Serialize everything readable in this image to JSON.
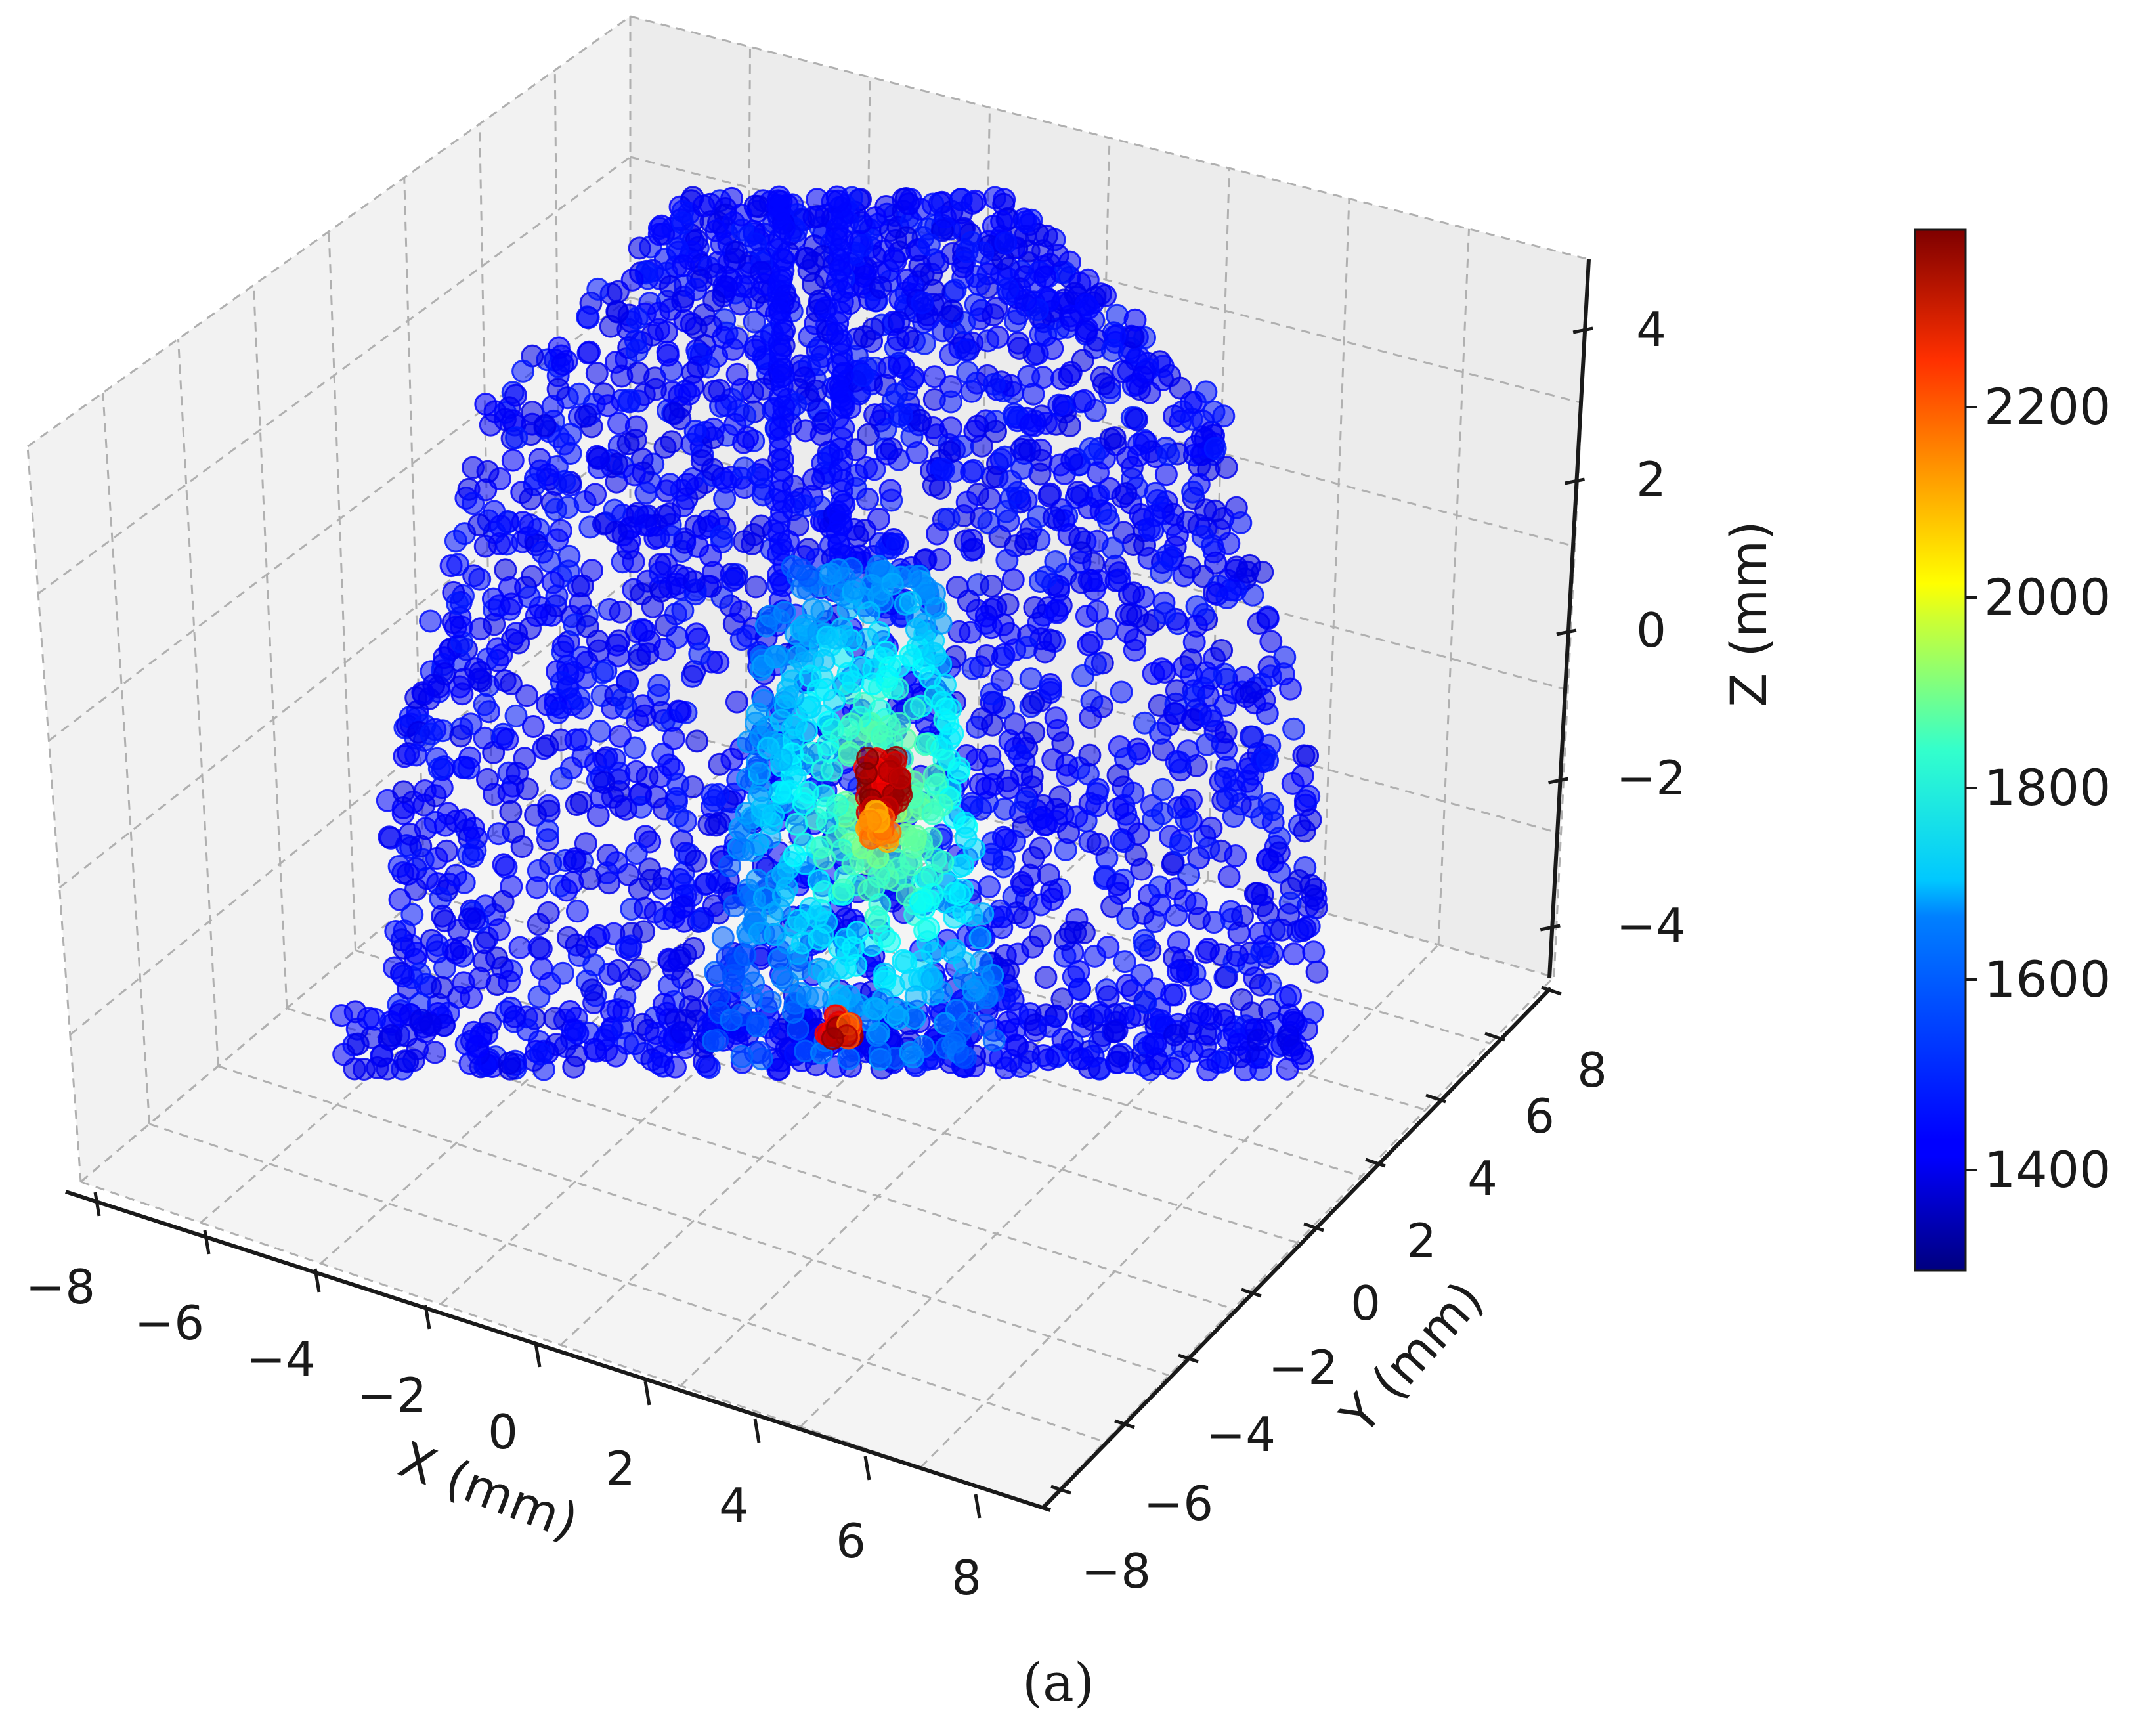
{
  "chart_data": {
    "type": "scatter3d",
    "xlabel": "X (mm)",
    "ylabel": "Y (mm)",
    "zlabel": "Z (mm)",
    "xlim": [
      -8,
      8
    ],
    "ylim": [
      -8,
      8
    ],
    "zlim": [
      -5,
      5
    ],
    "x_ticks": [
      "−8",
      "−6",
      "−4",
      "−2",
      "0",
      "2",
      "4",
      "6",
      "8"
    ],
    "y_ticks": [
      "−8",
      "−6",
      "−4",
      "−2",
      "0",
      "2",
      "4",
      "6",
      "8"
    ],
    "z_ticks": [
      "−4",
      "−2",
      "0",
      "2",
      "4"
    ],
    "colorbar": {
      "colormap": "jet",
      "range": [
        1290,
        2380
      ],
      "ticks": [
        "1400",
        "1600",
        "1800",
        "2000",
        "2200"
      ]
    },
    "description_of_distribution": "Dense point cloud spanning X −8..8, Z −5..5, bell/dome-shaped outline; most points ~1300–1450 (dark blue); central column near X≈1 has higher values up to ~2350 (red) around Z≈−2 and Z≈−5",
    "panel_label": "(a)"
  }
}
